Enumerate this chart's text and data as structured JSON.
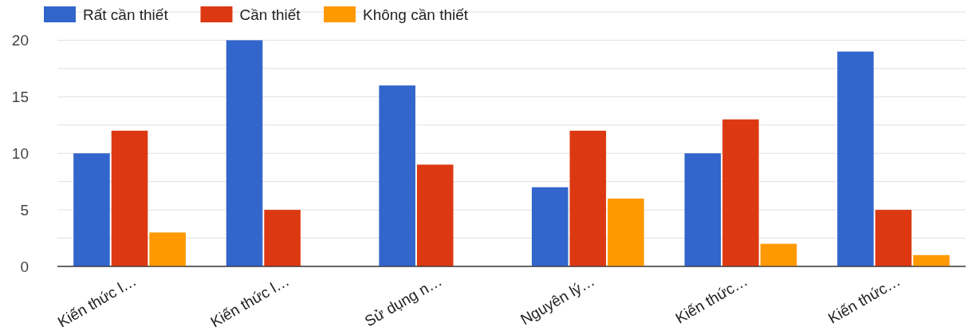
{
  "chart_data": {
    "type": "bar",
    "categories": [
      "Kiến thức l…",
      "Kiến thức l…",
      "Sử dụng n…",
      "Nguyên lý…",
      "Kiến thức…",
      "Kiến thức…"
    ],
    "series": [
      {
        "name": "Rất cần thiết",
        "color": "#3366cc",
        "values": [
          10,
          20,
          16,
          7,
          10,
          19
        ]
      },
      {
        "name": "Cần thiết",
        "color": "#dc3912",
        "values": [
          12,
          5,
          9,
          12,
          13,
          5
        ]
      },
      {
        "name": "Không cần thiết",
        "color": "#ff9900",
        "values": [
          3,
          0,
          0,
          6,
          2,
          1
        ]
      }
    ],
    "ylim": [
      0,
      22.5
    ],
    "yticks": [
      0,
      {
        "value": 2.5,
        "label": null
      },
      5,
      {
        "value": 7.5,
        "label": null
      },
      10,
      {
        "value": 12.5,
        "label": null
      },
      15,
      {
        "value": 17.5,
        "label": null
      },
      20,
      {
        "value": 22.5,
        "label": null
      }
    ],
    "grid": true,
    "legend": "top left"
  }
}
